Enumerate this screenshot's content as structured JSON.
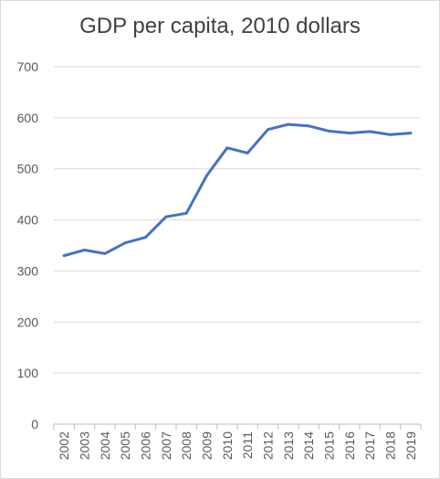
{
  "chart_data": {
    "type": "line",
    "title": "GDP per capita, 2010 dollars",
    "xlabel": "",
    "ylabel": "",
    "x": [
      "2002",
      "2003",
      "2004",
      "2005",
      "2006",
      "2007",
      "2008",
      "2009",
      "2010",
      "2011",
      "2012",
      "2013",
      "2014",
      "2015",
      "2016",
      "2017",
      "2018",
      "2019"
    ],
    "series": [
      {
        "values": [
          330,
          341,
          334,
          355,
          366,
          406,
          413,
          487,
          541,
          531,
          577,
          587,
          584,
          574,
          570,
          573,
          567,
          570
        ],
        "color": "#4472c4"
      }
    ],
    "ylim": [
      0,
      700
    ],
    "yticks": [
      "0",
      "100",
      "200",
      "300",
      "400",
      "500",
      "600",
      "700"
    ],
    "grid": true,
    "legend": "none"
  }
}
